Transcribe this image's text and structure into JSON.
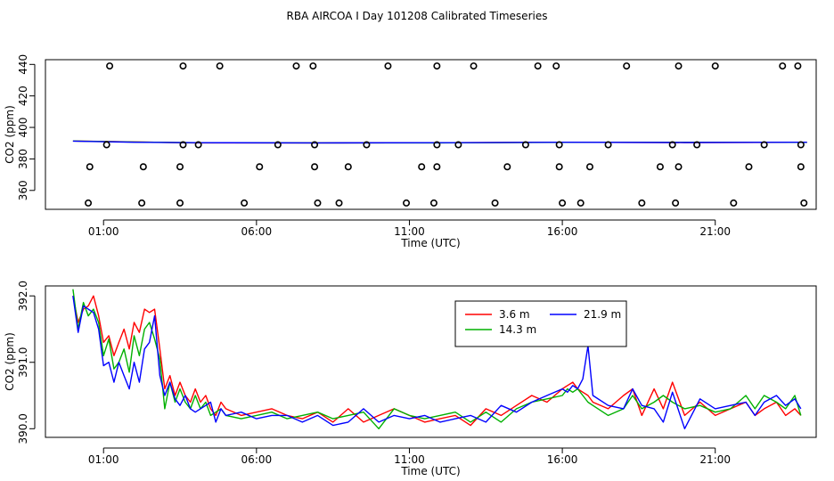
{
  "title": "RBA AIRCOA I  Day 101208  Calibrated Timeseries",
  "chart_data": [
    {
      "type": "scatter",
      "id": "top",
      "xlabel": "Time (UTC)",
      "ylabel": "CO2 (ppm)",
      "xlim": [
        -0.9,
        24.3
      ],
      "ylim": [
        348,
        443
      ],
      "xticks": [
        1,
        6,
        11,
        16,
        21
      ],
      "xticklabels": [
        "01:00",
        "06:00",
        "11:00",
        "16:00",
        "21:00"
      ],
      "yticks": [
        360,
        380,
        400,
        420,
        440
      ],
      "yticklabels": [
        "360",
        "380",
        "400",
        "420",
        "440"
      ],
      "points": [
        [
          0.5,
          352
        ],
        [
          0.55,
          375
        ],
        [
          1.1,
          389
        ],
        [
          1.2,
          439
        ],
        [
          2.25,
          352
        ],
        [
          2.3,
          375
        ],
        [
          3.5,
          352
        ],
        [
          3.5,
          375
        ],
        [
          3.6,
          439
        ],
        [
          3.6,
          389
        ],
        [
          4.1,
          389
        ],
        [
          4.8,
          439
        ],
        [
          5.6,
          352
        ],
        [
          6.1,
          375
        ],
        [
          6.7,
          389
        ],
        [
          7.3,
          439
        ],
        [
          7.85,
          439
        ],
        [
          7.9,
          389
        ],
        [
          7.9,
          375
        ],
        [
          8.0,
          352
        ],
        [
          8.7,
          352
        ],
        [
          9.0,
          375
        ],
        [
          9.6,
          389
        ],
        [
          10.3,
          439
        ],
        [
          10.9,
          352
        ],
        [
          11.4,
          375
        ],
        [
          11.8,
          352
        ],
        [
          11.9,
          375
        ],
        [
          11.9,
          389
        ],
        [
          11.9,
          439
        ],
        [
          12.6,
          389
        ],
        [
          13.1,
          439
        ],
        [
          13.8,
          352
        ],
        [
          14.2,
          375
        ],
        [
          14.8,
          389
        ],
        [
          15.2,
          439
        ],
        [
          15.8,
          439
        ],
        [
          15.9,
          389
        ],
        [
          15.9,
          375
        ],
        [
          16.0,
          352
        ],
        [
          16.6,
          352
        ],
        [
          16.9,
          375
        ],
        [
          17.5,
          389
        ],
        [
          18.1,
          439
        ],
        [
          18.6,
          352
        ],
        [
          19.2,
          375
        ],
        [
          19.6,
          389
        ],
        [
          19.8,
          439
        ],
        [
          19.8,
          375
        ],
        [
          19.7,
          352
        ],
        [
          20.4,
          389
        ],
        [
          21.0,
          439
        ],
        [
          21.6,
          352
        ],
        [
          22.1,
          375
        ],
        [
          22.6,
          389
        ],
        [
          23.2,
          439
        ],
        [
          23.7,
          439
        ],
        [
          23.8,
          389
        ],
        [
          23.8,
          375
        ],
        [
          23.9,
          352
        ]
      ],
      "flat_series": [
        {
          "name": "3.6 m",
          "color": "#ff0000",
          "x": [
            0,
            2,
            4,
            8,
            12,
            16,
            20,
            24
          ],
          "y": [
            391.4,
            390.8,
            390.2,
            390.2,
            390.3,
            390.6,
            390.4,
            390.5
          ]
        },
        {
          "name": "14.3 m",
          "color": "#00b000",
          "x": [
            0,
            2,
            4,
            8,
            12,
            16,
            20,
            24
          ],
          "y": [
            391.4,
            390.7,
            390.3,
            390.2,
            390.2,
            390.5,
            390.5,
            390.5
          ]
        },
        {
          "name": "21.9 m",
          "color": "#0000ff",
          "x": [
            0,
            2,
            4,
            8,
            12,
            16,
            20,
            24
          ],
          "y": [
            391.3,
            390.6,
            390.3,
            390.2,
            390.3,
            390.6,
            390.4,
            390.6
          ]
        }
      ]
    },
    {
      "type": "line",
      "id": "bottom",
      "xlabel": "Time (UTC)",
      "ylabel": "CO2 (ppm)",
      "xlim": [
        -0.9,
        24.3
      ],
      "ylim": [
        389.87,
        392.15
      ],
      "xticks": [
        1,
        6,
        11,
        16,
        21
      ],
      "xticklabels": [
        "01:00",
        "06:00",
        "11:00",
        "16:00",
        "21:00"
      ],
      "yticks": [
        390.0,
        391.0,
        392.0
      ],
      "yticklabels": [
        "390.0",
        "391.0",
        "392.0"
      ],
      "legend": {
        "position": "top-center-right",
        "entries": [
          "3.6 m",
          "21.9 m",
          "14.3 m"
        ]
      },
      "series": [
        {
          "name": "3.6 m",
          "color": "#ff0000",
          "x": [
            0,
            0.17,
            0.34,
            0.5,
            0.67,
            0.84,
            1.0,
            1.17,
            1.34,
            1.5,
            1.67,
            1.84,
            2.0,
            2.17,
            2.34,
            2.5,
            2.67,
            2.84,
            3.0,
            3.17,
            3.34,
            3.5,
            3.67,
            3.84,
            4.0,
            4.17,
            4.34,
            4.5,
            4.67,
            4.84,
            5.0,
            5.5,
            6.0,
            6.5,
            7.0,
            7.5,
            8.0,
            8.5,
            9.0,
            9.5,
            10.0,
            10.5,
            11.0,
            11.5,
            12.0,
            12.5,
            13.0,
            13.5,
            14.0,
            14.5,
            15.0,
            15.5,
            16.0,
            16.17,
            16.34,
            16.5,
            16.67,
            16.84,
            17.0,
            17.5,
            18.0,
            18.3,
            18.6,
            19.0,
            19.3,
            19.6,
            20.0,
            20.5,
            21.0,
            21.5,
            22.0,
            22.3,
            22.6,
            23.0,
            23.3,
            23.6,
            23.8
          ],
          "y": [
            392.0,
            391.6,
            391.8,
            391.85,
            392.0,
            391.7,
            391.3,
            391.4,
            391.1,
            391.3,
            391.5,
            391.2,
            391.6,
            391.45,
            391.8,
            391.75,
            391.8,
            391.2,
            390.6,
            390.8,
            390.5,
            390.7,
            390.5,
            390.4,
            390.6,
            390.4,
            390.5,
            390.3,
            390.2,
            390.4,
            390.3,
            390.2,
            390.25,
            390.3,
            390.2,
            390.15,
            390.25,
            390.1,
            390.3,
            390.1,
            390.2,
            390.3,
            390.2,
            390.1,
            390.15,
            390.2,
            390.05,
            390.3,
            390.2,
            390.35,
            390.5,
            390.4,
            390.6,
            390.65,
            390.7,
            390.6,
            390.55,
            390.5,
            390.4,
            390.3,
            390.5,
            390.6,
            390.2,
            390.6,
            390.3,
            390.7,
            390.2,
            390.4,
            390.2,
            390.3,
            390.4,
            390.2,
            390.3,
            390.4,
            390.2,
            390.3,
            390.2
          ]
        },
        {
          "name": "14.3 m",
          "color": "#00b000",
          "x": [
            0,
            0.17,
            0.34,
            0.5,
            0.67,
            0.84,
            1.0,
            1.17,
            1.34,
            1.5,
            1.67,
            1.84,
            2.0,
            2.17,
            2.34,
            2.5,
            2.67,
            2.84,
            3.0,
            3.17,
            3.34,
            3.5,
            3.67,
            3.84,
            4.0,
            4.17,
            4.34,
            4.5,
            4.67,
            4.84,
            5.0,
            5.5,
            6.0,
            6.5,
            7.0,
            7.5,
            8.0,
            8.5,
            9.0,
            9.5,
            10.0,
            10.5,
            11.0,
            11.5,
            12.0,
            12.5,
            13.0,
            13.5,
            14.0,
            14.5,
            15.0,
            15.5,
            16.0,
            16.17,
            16.34,
            16.5,
            16.67,
            16.84,
            17.0,
            17.5,
            18.0,
            18.3,
            18.6,
            19.0,
            19.3,
            19.6,
            20.0,
            20.5,
            21.0,
            21.5,
            22.0,
            22.3,
            22.6,
            23.0,
            23.3,
            23.6,
            23.8
          ],
          "y": [
            392.1,
            391.5,
            391.9,
            391.7,
            391.8,
            391.6,
            391.1,
            391.35,
            390.9,
            391.0,
            391.2,
            390.85,
            391.4,
            391.1,
            391.5,
            391.6,
            391.35,
            391.05,
            390.3,
            390.7,
            390.4,
            390.6,
            390.4,
            390.3,
            390.5,
            390.3,
            390.4,
            390.2,
            390.25,
            390.3,
            390.2,
            390.15,
            390.2,
            390.25,
            390.15,
            390.2,
            390.25,
            390.15,
            390.2,
            390.25,
            390.0,
            390.3,
            390.2,
            390.15,
            390.2,
            390.25,
            390.1,
            390.25,
            390.1,
            390.3,
            390.4,
            390.45,
            390.5,
            390.6,
            390.55,
            390.6,
            390.5,
            390.4,
            390.35,
            390.2,
            390.3,
            390.5,
            390.3,
            390.4,
            390.5,
            390.4,
            390.3,
            390.35,
            390.25,
            390.3,
            390.5,
            390.3,
            390.5,
            390.4,
            390.3,
            390.5,
            390.2
          ]
        },
        {
          "name": "21.9 m",
          "color": "#0000ff",
          "x": [
            0,
            0.17,
            0.34,
            0.5,
            0.67,
            0.84,
            1.0,
            1.17,
            1.34,
            1.5,
            1.67,
            1.84,
            2.0,
            2.17,
            2.34,
            2.5,
            2.67,
            2.84,
            3.0,
            3.17,
            3.34,
            3.5,
            3.67,
            3.84,
            4.0,
            4.17,
            4.34,
            4.5,
            4.67,
            4.84,
            5.0,
            5.5,
            6.0,
            6.5,
            7.0,
            7.5,
            8.0,
            8.5,
            9.0,
            9.5,
            10.0,
            10.5,
            11.0,
            11.5,
            12.0,
            12.5,
            13.0,
            13.5,
            14.0,
            14.5,
            15.0,
            15.5,
            16.0,
            16.17,
            16.34,
            16.5,
            16.67,
            16.84,
            17.0,
            17.5,
            18.0,
            18.3,
            18.6,
            19.0,
            19.3,
            19.6,
            20.0,
            20.5,
            21.0,
            21.5,
            22.0,
            22.3,
            22.6,
            23.0,
            23.3,
            23.6,
            23.8
          ],
          "y": [
            392.0,
            391.45,
            391.85,
            391.8,
            391.75,
            391.5,
            390.95,
            391.0,
            390.7,
            391.0,
            390.8,
            390.6,
            391.0,
            390.7,
            391.2,
            391.3,
            391.7,
            390.8,
            390.5,
            390.7,
            390.45,
            390.35,
            390.5,
            390.3,
            390.25,
            390.3,
            390.35,
            390.4,
            390.1,
            390.3,
            390.2,
            390.25,
            390.15,
            390.2,
            390.2,
            390.1,
            390.2,
            390.05,
            390.1,
            390.3,
            390.1,
            390.2,
            390.15,
            390.2,
            390.1,
            390.15,
            390.2,
            390.1,
            390.35,
            390.25,
            390.4,
            390.5,
            390.6,
            390.55,
            390.65,
            390.6,
            390.75,
            391.25,
            390.5,
            390.35,
            390.3,
            390.6,
            390.35,
            390.3,
            390.1,
            390.55,
            390.0,
            390.45,
            390.3,
            390.35,
            390.4,
            390.2,
            390.4,
            390.5,
            390.35,
            390.45,
            390.3
          ]
        }
      ]
    }
  ]
}
